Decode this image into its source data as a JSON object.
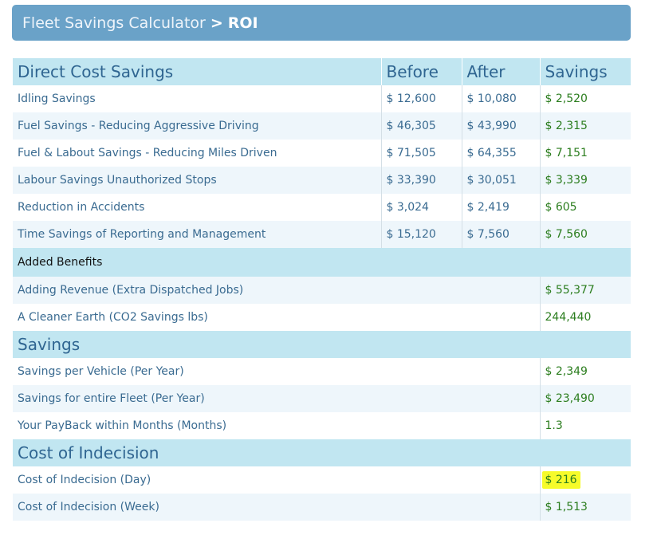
{
  "header": {
    "root": "Fleet Savings Calculator",
    "separator": ">",
    "current": "ROI"
  },
  "sections": {
    "direct": {
      "title": "Direct Cost Savings",
      "col_before": "Before",
      "col_after": "After",
      "col_savings": "Savings",
      "rows": [
        {
          "label": "Idling Savings",
          "before": "$ 12,600",
          "after": "$ 10,080",
          "savings": "$ 2,520"
        },
        {
          "label": "Fuel Savings - Reducing Aggressive Driving",
          "before": "$ 46,305",
          "after": "$ 43,990",
          "savings": "$ 2,315"
        },
        {
          "label": "Fuel & Labout Savings - Reducing Miles Driven",
          "before": "$ 71,505",
          "after": "$ 64,355",
          "savings": "$ 7,151"
        },
        {
          "label": "Labour Savings Unauthorized Stops",
          "before": "$ 33,390",
          "after": "$ 30,051",
          "savings": "$ 3,339"
        },
        {
          "label": "Reduction in Accidents",
          "before": "$ 3,024",
          "after": "$ 2,419",
          "savings": "$ 605"
        },
        {
          "label": "Time Savings of Reporting and Management",
          "before": "$ 15,120",
          "after": "$ 7,560",
          "savings": "$ 7,560"
        }
      ]
    },
    "added": {
      "title": "Added Benefits",
      "rows": [
        {
          "label": "Adding Revenue (Extra Dispatched Jobs)",
          "value": "$ 55,377"
        },
        {
          "label": "A Cleaner Earth (CO2 Savings lbs)",
          "value": "244,440"
        }
      ]
    },
    "savings": {
      "title": "Savings",
      "rows": [
        {
          "label": "Savings per Vehicle (Per Year)",
          "value": "$ 2,349"
        },
        {
          "label": "Savings for entire Fleet (Per Year)",
          "value": "$ 23,490"
        },
        {
          "label": "Your PayBack within Months (Months)",
          "value": "1.3"
        }
      ]
    },
    "indecision": {
      "title": "Cost of Indecision",
      "highlight_color": "#f6fb2a",
      "rows": [
        {
          "label": "Cost of Indecision (Day)",
          "value": "$ 216"
        },
        {
          "label": "Cost of Indecision (Week)",
          "value": "$ 1,513"
        }
      ]
    }
  },
  "colors": {
    "header_bg": "#6aa2c8",
    "section_bg": "#c1e6f1",
    "text": "#3a6b91",
    "positive": "#2b7d1e"
  }
}
